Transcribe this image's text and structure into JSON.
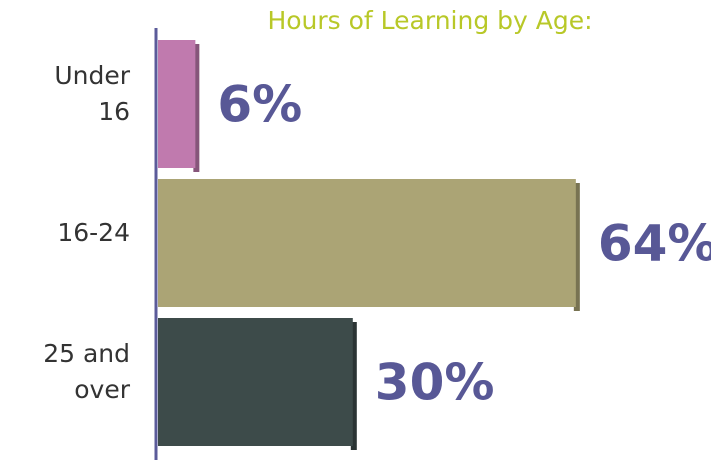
{
  "chart_data": {
    "type": "bar",
    "orientation": "horizontal",
    "title": "Hours of Learning by Age:",
    "categories": [
      "Under 16",
      "16-24",
      "25 and over"
    ],
    "values": [
      6,
      64,
      30
    ],
    "value_labels": [
      "6%",
      "64%",
      "30%"
    ],
    "colors": [
      "#c07aae",
      "#aba475",
      "#3d4b4a"
    ]
  }
}
